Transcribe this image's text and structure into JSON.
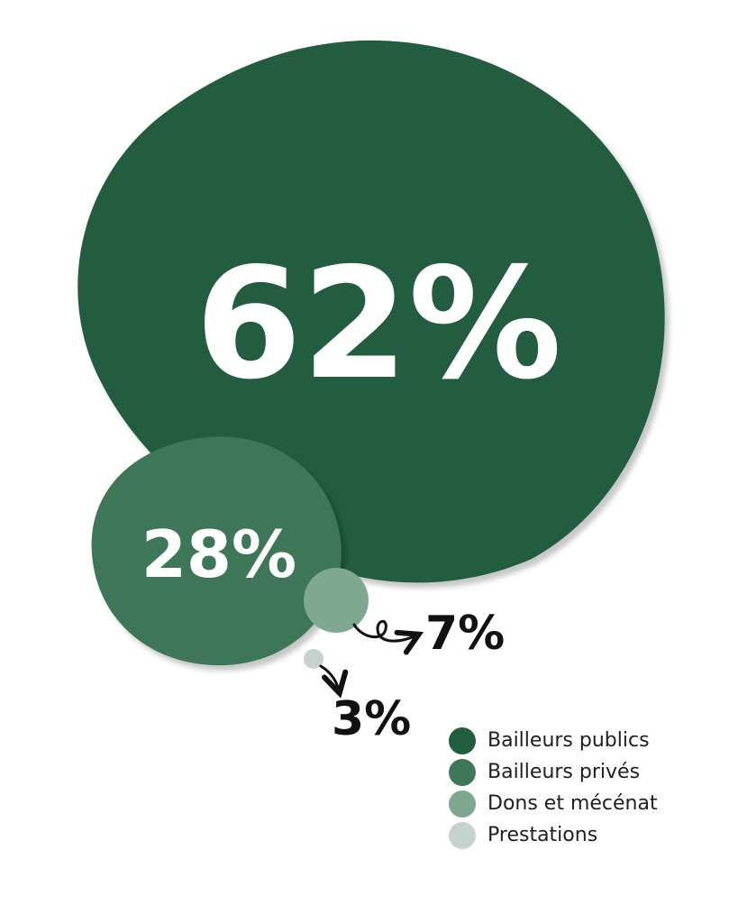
{
  "chart_data": {
    "type": "bubble",
    "title": "",
    "series": [
      {
        "name": "Bailleurs publics",
        "value": 62,
        "label": "62%",
        "color": "#215d3f"
      },
      {
        "name": "Bailleurs privés",
        "value": 28,
        "label": "28%",
        "color": "#3e7759"
      },
      {
        "name": "Dons et mécénat",
        "value": 7,
        "label": "7%",
        "color": "#7fa890"
      },
      {
        "name": "Prestations",
        "value": 3,
        "label": "3%",
        "color": "#c5d3cc"
      }
    ],
    "legend_position": "bottom-right"
  }
}
